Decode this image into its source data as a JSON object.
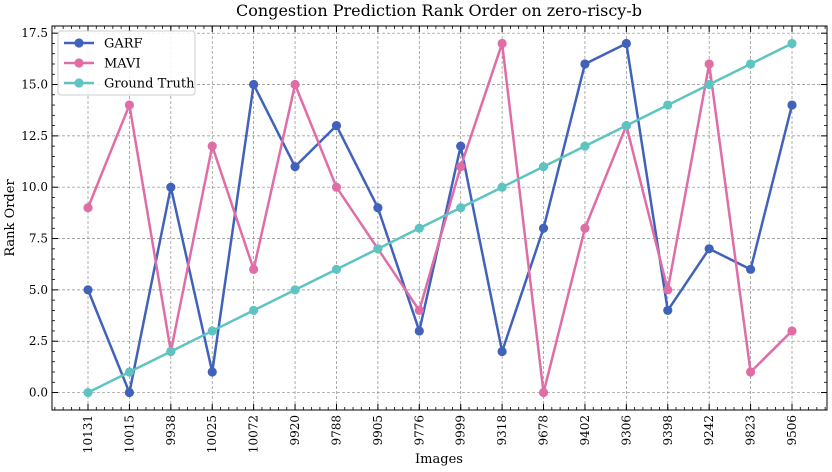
{
  "chart_data": {
    "type": "line",
    "title": "Congestion Prediction Rank Order on zero-riscy-b",
    "xlabel": "Images",
    "ylabel": "Rank Order",
    "categories": [
      "10131",
      "10015",
      "9938",
      "10025",
      "10072",
      "9920",
      "9788",
      "9905",
      "9776",
      "9999",
      "9318",
      "9678",
      "9402",
      "9306",
      "9398",
      "9242",
      "9823",
      "9506"
    ],
    "ylim": [
      -0.85,
      17.85
    ],
    "yticks": [
      0.0,
      2.5,
      5.0,
      7.5,
      10.0,
      12.5,
      15.0,
      17.5
    ],
    "ytick_labels": [
      "0.0",
      "2.5",
      "5.0",
      "7.5",
      "10.0",
      "12.5",
      "15.0",
      "17.5"
    ],
    "grid": true,
    "legend_position": "top-left",
    "series": [
      {
        "name": "GARF",
        "color": "#4062bb",
        "values": [
          5,
          0,
          10,
          1,
          15,
          11,
          13,
          9,
          3,
          12,
          2,
          8,
          16,
          17,
          4,
          7,
          6,
          14
        ]
      },
      {
        "name": "MAVI",
        "color": "#e06da6",
        "values": [
          9,
          14,
          2,
          12,
          6,
          15,
          10,
          7,
          4,
          11,
          17,
          0,
          8,
          13,
          5,
          16,
          1,
          3
        ]
      },
      {
        "name": "Ground Truth",
        "color": "#5ec4c1",
        "values": [
          0,
          1,
          2,
          3,
          4,
          5,
          6,
          7,
          8,
          9,
          10,
          11,
          12,
          13,
          14,
          15,
          16,
          17
        ]
      }
    ]
  }
}
